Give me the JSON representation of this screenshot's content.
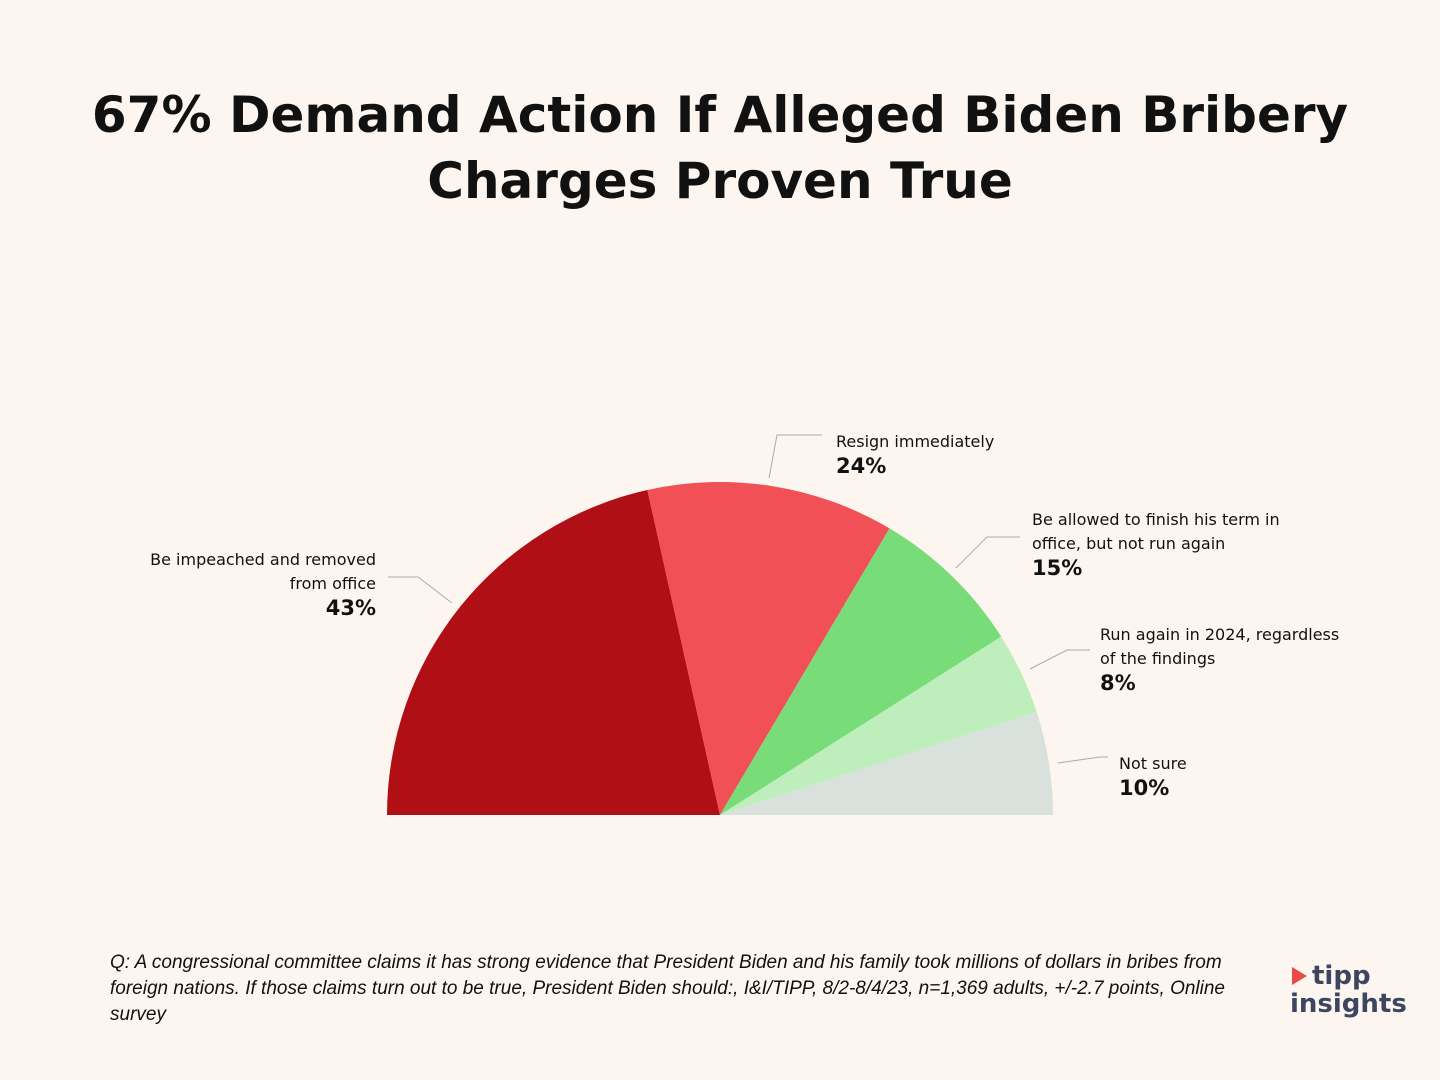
{
  "chart_data": {
    "type": "pie",
    "subtype": "half-donut-semicircle",
    "title": "67% Demand Action If Alleged Biden Bribery Charges Proven True",
    "slices": [
      {
        "label": "Be impeached and removed from office",
        "value": 43,
        "display": "43%",
        "color": "#b00f16"
      },
      {
        "label": "Resign immediately",
        "value": 24,
        "display": "24%",
        "color": "#f05056"
      },
      {
        "label": "Be allowed to finish his term in office, but not run again",
        "value": 15,
        "display": "15%",
        "color": "#78dc78"
      },
      {
        "label": "Run again in 2024, regardless of the findings",
        "value": 8,
        "display": "8%",
        "color": "#bdeebc"
      },
      {
        "label": "Not sure",
        "value": 10,
        "display": "10%",
        "color": "#d9e1dc"
      }
    ]
  },
  "footnote": "Q: A congressional committee claims it has strong evidence that President Biden and his family took millions of dollars in bribes from foreign nations. If those claims turn out to be true, President Biden should:, I&I/TIPP, 8/2-8/4/23, n=1,369 adults, +/-2.7 points,  Online survey",
  "logo": {
    "line1": "tipp",
    "line2": "insights"
  }
}
